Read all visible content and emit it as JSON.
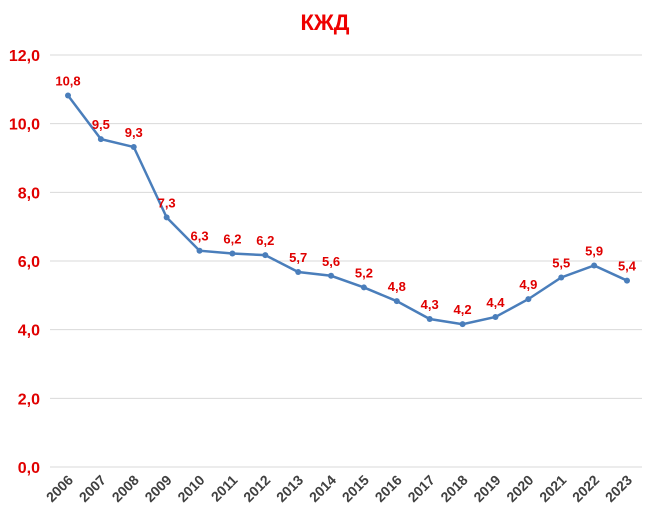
{
  "chart_data": {
    "type": "line",
    "title": "КЖД",
    "categories": [
      "2006",
      "2007",
      "2008",
      "2009",
      "2010",
      "2011",
      "2012",
      "2013",
      "2014",
      "2015",
      "2016",
      "2017",
      "2018",
      "2019",
      "2020",
      "2021",
      "2022",
      "2023"
    ],
    "series": [
      {
        "color": "#4a7ebb",
        "values": [
          10.82,
          9.55,
          9.32,
          7.27,
          6.3,
          6.22,
          6.17,
          5.68,
          5.57,
          5.23,
          4.83,
          4.31,
          4.16,
          4.37,
          4.89,
          5.52,
          5.87,
          5.43
        ],
        "value_labels": [
          "10,8",
          "9,5",
          "9,3",
          "7,3",
          "6,3",
          "6,2",
          "6,2",
          "5,7",
          "5,6",
          "5,2",
          "4,8",
          "4,3",
          "4,2",
          "4,4",
          "4,9",
          "5,5",
          "5,9",
          "5,4"
        ]
      }
    ],
    "ylim": [
      0,
      12
    ],
    "yticks": [
      {
        "value": 0,
        "label": "0,0"
      },
      {
        "value": 2,
        "label": "2,0"
      },
      {
        "value": 4,
        "label": "4,0"
      },
      {
        "value": 6,
        "label": "6,0"
      },
      {
        "value": 8,
        "label": "8,0"
      },
      {
        "value": 10,
        "label": "10,0"
      },
      {
        "value": 12,
        "label": "12,0"
      }
    ],
    "grid": true
  }
}
